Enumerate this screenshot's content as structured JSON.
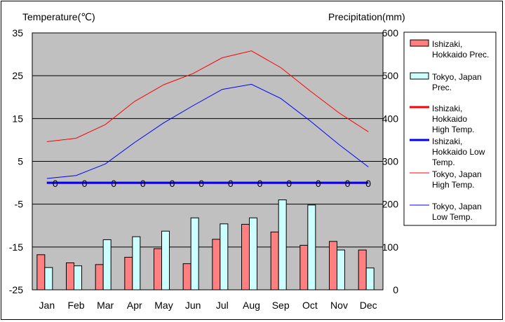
{
  "chart_data": {
    "type": "bar",
    "left_axis_title": "Temperature(℃)",
    "right_axis_title": "Precipitation(mm)",
    "categories": [
      "Jan",
      "Feb",
      "Mar",
      "Apr",
      "May",
      "Jun",
      "Jul",
      "Aug",
      "Sep",
      "Oct",
      "Nov",
      "Dec"
    ],
    "left_axis": {
      "min": -25,
      "max": 35,
      "ticks": [
        "35",
        "25",
        "15",
        "5",
        "-5",
        "-15",
        "-25"
      ]
    },
    "right_axis": {
      "min": 0,
      "max": 600,
      "ticks": [
        "600",
        "500",
        "400",
        "300",
        "200",
        "100",
        "0"
      ]
    },
    "bar_series": [
      {
        "name": "Ishizaki, Hokkaido Prec.",
        "color": "#ff8080",
        "values": [
          82,
          63,
          59,
          76,
          96,
          61,
          118,
          153,
          135,
          104,
          113,
          93
        ]
      },
      {
        "name": "Tokyo, Japan Prec.",
        "color": "#ccffff",
        "values": [
          52,
          56,
          117,
          124,
          137,
          168,
          154,
          168,
          210,
          198,
          93,
          51
        ]
      }
    ],
    "line_series": [
      {
        "name": "Ishizaki, Hokkaido High Temp.",
        "color": "#ff0000",
        "width": 3,
        "values": [
          0,
          0,
          0,
          0,
          0,
          0,
          0,
          0,
          0,
          0,
          0,
          0
        ]
      },
      {
        "name": "Ishizaki, Hokkaido Low Temp.",
        "color": "#0000ff",
        "width": 3,
        "values": [
          0,
          0,
          0,
          0,
          0,
          0,
          0,
          0,
          0,
          0,
          0,
          0
        ]
      },
      {
        "name": "Tokyo, Japan High Temp.",
        "color": "#ff0000",
        "width": 1,
        "values": [
          9.6,
          10.4,
          13.6,
          19.0,
          22.9,
          25.5,
          29.2,
          30.8,
          26.9,
          21.5,
          16.3,
          11.9
        ]
      },
      {
        "name": "Tokyo, Japan Low Temp.",
        "color": "#0000ff",
        "width": 1,
        "values": [
          1.0,
          1.7,
          4.4,
          9.4,
          14.0,
          18.0,
          21.8,
          23.0,
          19.7,
          14.5,
          8.9,
          3.7
        ]
      }
    ],
    "data_labels": [
      "0",
      "0",
      "0",
      "0",
      "0",
      "0",
      "0",
      "0",
      "0",
      "0",
      "0",
      "0"
    ],
    "legend": {
      "placement": "right",
      "entries": [
        {
          "label_lines": [
            "Ishizaki,",
            "Hokkaido Prec."
          ]
        },
        {
          "label_lines": [
            "Tokyo, Japan",
            "Prec."
          ]
        },
        {
          "label_lines": [
            "Ishizaki,",
            "Hokkaido",
            "High Temp."
          ]
        },
        {
          "label_lines": [
            "Ishizaki,",
            "Hokkaido Low",
            "Temp."
          ]
        },
        {
          "label_lines": [
            "Tokyo, Japan",
            "High Temp."
          ]
        },
        {
          "label_lines": [
            "Tokyo, Japan",
            "Low Temp."
          ]
        }
      ]
    },
    "plot_background": "#c0c0c0",
    "grid": true
  }
}
